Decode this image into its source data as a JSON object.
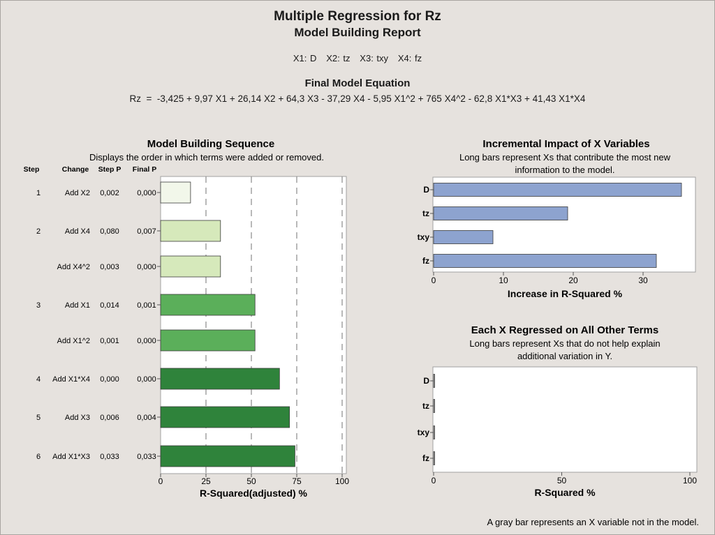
{
  "report": {
    "title": "Multiple Regression for Rz",
    "subtitle": "Model Building Report",
    "variables_legend": "X1: D   X2: tz   X3: txy   X4: fz",
    "equation_title": "Final Model Equation",
    "equation": "Rz  =  -3,425 + 9,97 X1 + 26,14 X2 + 64,3 X3 - 37,29 X4 - 5,95 X1^2 + 765 X4^2 - 62,8 X1*X3 + 41,43 X1*X4",
    "footnote": "A gray bar represents an X variable not in the model."
  },
  "colors": {
    "background": "#e6e2de",
    "plot_background": "#ffffff",
    "step1": "#f2f7ea",
    "step2": "#d6e9bb",
    "step3": "#5baf5a",
    "step4": "#2f833b",
    "impact_bar": "#8da3cf",
    "bar_outline": "#3a3a3a",
    "not_in_model": "#b3b3b3"
  },
  "chart_data": [
    {
      "type": "bar",
      "orientation": "horizontal",
      "title": "Model Building Sequence",
      "subtitle": "Displays the order in which terms were added or removed.",
      "xlabel": "R-Squared(adjusted) %",
      "xlim": [
        0,
        100
      ],
      "xticks": [
        "0",
        "25",
        "50",
        "75",
        "100"
      ],
      "grid": "dashed vertical lines at 25, 50, 75, 100",
      "column_headers": {
        "step": "Step",
        "change": "Change",
        "step_p": "Step P",
        "final_p": "Final P"
      },
      "rows": [
        {
          "step": "1",
          "change": "Add X2",
          "step_p": "0,002",
          "final_p": "0,000",
          "value": 16.5,
          "color_key": "step1"
        },
        {
          "step": "2",
          "change": "Add X4",
          "step_p": "0,080",
          "final_p": "0,007",
          "value": 33,
          "color_key": "step2"
        },
        {
          "step": "",
          "change": "Add X4^2",
          "step_p": "0,003",
          "final_p": "0,000",
          "value": 33,
          "color_key": "step2"
        },
        {
          "step": "3",
          "change": "Add X1",
          "step_p": "0,014",
          "final_p": "0,001",
          "value": 52,
          "color_key": "step3"
        },
        {
          "step": "",
          "change": "Add X1^2",
          "step_p": "0,001",
          "final_p": "0,000",
          "value": 52,
          "color_key": "step3"
        },
        {
          "step": "4",
          "change": "Add X1*X4",
          "step_p": "0,000",
          "final_p": "0,000",
          "value": 65.5,
          "color_key": "step4"
        },
        {
          "step": "5",
          "change": "Add X3",
          "step_p": "0,006",
          "final_p": "0,004",
          "value": 71,
          "color_key": "step4"
        },
        {
          "step": "6",
          "change": "Add X1*X3",
          "step_p": "0,033",
          "final_p": "0,033",
          "value": 74,
          "color_key": "step4"
        }
      ]
    },
    {
      "type": "bar",
      "orientation": "horizontal",
      "title": "Incremental Impact of X Variables",
      "subtitle_lines": [
        "Long bars represent Xs that contribute the most new",
        "information to the model."
      ],
      "xlabel": "Increase in R-Squared %",
      "xlim": [
        0,
        37.5
      ],
      "xticks": [
        0,
        10,
        20,
        30
      ],
      "categories": [
        "D",
        "tz",
        "txy",
        "fz"
      ],
      "values": [
        35.5,
        19.2,
        8.5,
        31.9
      ]
    },
    {
      "type": "bar",
      "orientation": "horizontal",
      "title": "Each X Regressed on All Other Terms",
      "subtitle_lines": [
        "Long bars represent Xs that do not help explain",
        "additional variation in Y."
      ],
      "xlabel": "R-Squared %",
      "xlim": [
        0,
        100
      ],
      "xticks": [
        0,
        50,
        100
      ],
      "categories": [
        "D",
        "tz",
        "txy",
        "fz"
      ],
      "values": [
        0.4,
        0.4,
        0.4,
        0.4
      ]
    }
  ]
}
